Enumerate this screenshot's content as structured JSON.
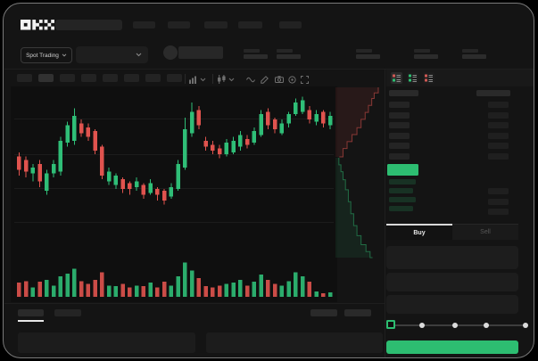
{
  "app": {
    "name": "OKX"
  },
  "colors": {
    "accent_green": "#2fbe77",
    "accent_red": "#e0534e",
    "button_green": "#2dbd71",
    "window_bg": "#141414",
    "chart_bg": "#0f0f0f",
    "placeholder": "#262626",
    "active_tab_underline": "#e8e8e8"
  },
  "header": {
    "nav_item_count": 5
  },
  "subheader": {
    "market_mode": "Spot Trading",
    "stat_group_count": 5
  },
  "chart_toolbar": {
    "timeframe_count": 8,
    "active_timeframe_index": 1,
    "icons": [
      "interval-dropdown",
      "chart-style-dropdown",
      "line-tool",
      "draw-tool",
      "camera",
      "settings",
      "fullscreen"
    ]
  },
  "chart_data": {
    "type": "candlestick",
    "title": "",
    "note": "Stylized spot-trading chart: candlesticks with volume below and vertical ask/bid depth profile on the right; no axis tick labels are rendered in the screenshot",
    "price_scale": {
      "min": 30,
      "max": 95
    },
    "grid": {
      "horizontal_lines": 4
    },
    "candles": [
      [
        62,
        55,
        64,
        52
      ],
      [
        60,
        54,
        62,
        51
      ],
      [
        53,
        56,
        58,
        49
      ],
      [
        58,
        49,
        60,
        46
      ],
      [
        44,
        53,
        55,
        42
      ],
      [
        53,
        58,
        60,
        51
      ],
      [
        54,
        70,
        72,
        52
      ],
      [
        69,
        78,
        80,
        67
      ],
      [
        70,
        83,
        87,
        68
      ],
      [
        79,
        74,
        81,
        72
      ],
      [
        77,
        72,
        79,
        70
      ],
      [
        75,
        65,
        76,
        63
      ],
      [
        67,
        52,
        68,
        50
      ],
      [
        49,
        54,
        56,
        47
      ],
      [
        47,
        52,
        53,
        45
      ],
      [
        50,
        45,
        51,
        43
      ],
      [
        48,
        45,
        49,
        42
      ],
      [
        46,
        49,
        51,
        44
      ],
      [
        47,
        42,
        48,
        40
      ],
      [
        43,
        48,
        50,
        42
      ],
      [
        45,
        42,
        46,
        39
      ],
      [
        44,
        39,
        45,
        37
      ],
      [
        41,
        46,
        48,
        40
      ],
      [
        45,
        58,
        60,
        44
      ],
      [
        56,
        76,
        82,
        55
      ],
      [
        74,
        85,
        90,
        72
      ],
      [
        86,
        78,
        88,
        76
      ],
      [
        70,
        67,
        72,
        65
      ],
      [
        68,
        65,
        70,
        63
      ],
      [
        66,
        63,
        68,
        61
      ],
      [
        63,
        69,
        71,
        62
      ],
      [
        64,
        70,
        72,
        63
      ],
      [
        67,
        73,
        75,
        65
      ],
      [
        71,
        68,
        73,
        66
      ],
      [
        69,
        75,
        77,
        68
      ],
      [
        73,
        84,
        86,
        72
      ],
      [
        85,
        78,
        87,
        76
      ],
      [
        81,
        76,
        82,
        74
      ],
      [
        74,
        79,
        81,
        73
      ],
      [
        79,
        84,
        85,
        77
      ],
      [
        84,
        90,
        92,
        83
      ],
      [
        85,
        91,
        93,
        84
      ],
      [
        86,
        81,
        88,
        79
      ],
      [
        80,
        84,
        86,
        78
      ],
      [
        85,
        79,
        86,
        77
      ],
      [
        78,
        83,
        85,
        76
      ]
    ],
    "volumes": [
      38,
      42,
      25,
      40,
      45,
      30,
      55,
      62,
      75,
      42,
      35,
      45,
      65,
      30,
      28,
      35,
      25,
      30,
      28,
      38,
      25,
      40,
      30,
      55,
      92,
      70,
      50,
      28,
      25,
      30,
      35,
      38,
      45,
      30,
      40,
      60,
      45,
      35,
      30,
      42,
      65,
      55,
      40,
      14,
      10,
      12
    ],
    "depth": {
      "asks": [
        [
          100,
          0
        ],
        [
          90,
          8
        ],
        [
          84,
          16
        ],
        [
          76,
          26
        ],
        [
          68,
          36
        ],
        [
          58,
          46
        ],
        [
          48,
          58
        ],
        [
          36,
          68
        ],
        [
          24,
          78
        ],
        [
          14,
          88
        ],
        [
          5,
          100
        ]
      ],
      "bids": [
        [
          4,
          0
        ],
        [
          9,
          7
        ],
        [
          14,
          14
        ],
        [
          20,
          22
        ],
        [
          27,
          32
        ],
        [
          33,
          44
        ],
        [
          40,
          56
        ],
        [
          48,
          68
        ],
        [
          58,
          78
        ],
        [
          70,
          87
        ],
        [
          80,
          94
        ],
        [
          86,
          100
        ]
      ]
    }
  },
  "order_book": {
    "view_modes": [
      {
        "name": "combined-book",
        "squares": [
          "red",
          "green"
        ]
      },
      {
        "name": "bids-only",
        "squares": [
          "green",
          "green"
        ]
      },
      {
        "name": "asks-only",
        "squares": [
          "red",
          "red"
        ]
      }
    ],
    "active_mode": 0,
    "ask_row_count": 6,
    "bid_row_count": 4,
    "bid_right_bar_count": 3,
    "last_price_color": "#2dbd71"
  },
  "trade_panel": {
    "tabs": [
      {
        "label": "Buy",
        "active": true
      },
      {
        "label": "Sell",
        "active": false
      }
    ],
    "field_count": 3,
    "slider": {
      "percent": 0,
      "stops": 5
    }
  },
  "bottom_bar": {
    "left_tab_count": 2,
    "active_tab_index": 0,
    "right_tab_count": 2,
    "panel_count": 2
  }
}
